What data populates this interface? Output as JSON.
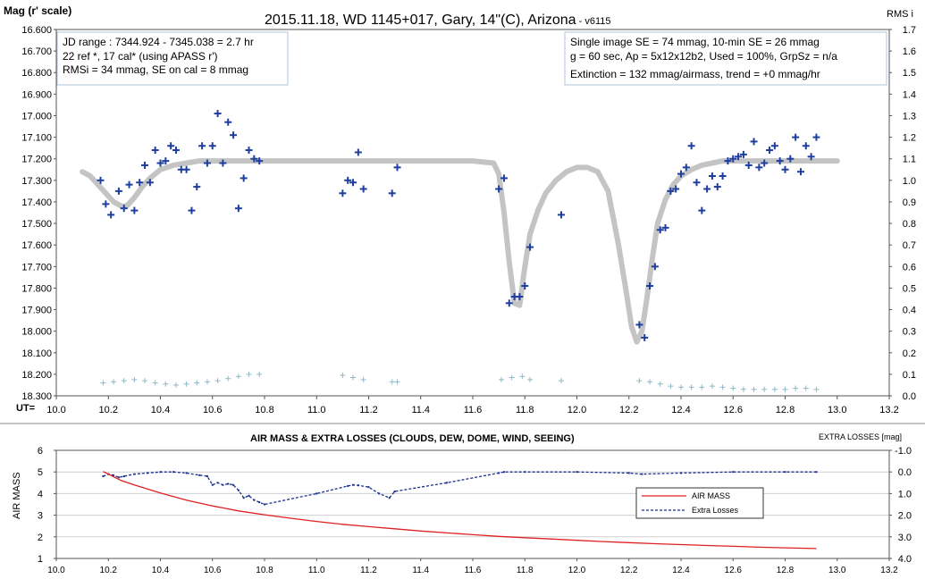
{
  "chart_data": [
    {
      "type": "scatter",
      "title": "2015.11.18, WD 1145+017, Gary, 14\"(C), Arizona",
      "title_suffix": " - v6115",
      "ylabel": "Mag (r' scale)",
      "ylabel_right": "RMS i",
      "xlabel": "UT=",
      "xlim": [
        10.0,
        13.2
      ],
      "ylim": [
        18.3,
        16.6
      ],
      "ylim_right": [
        0.0,
        1.7
      ],
      "x_ticks": [
        "10.0",
        "10.2",
        "10.4",
        "10.6",
        "10.8",
        "11.0",
        "11.2",
        "11.4",
        "11.6",
        "11.8",
        "12.0",
        "12.2",
        "12.4",
        "12.6",
        "12.8",
        "13.0",
        "13.2"
      ],
      "y_ticks": [
        "16.600",
        "16.700",
        "16.800",
        "16.900",
        "17.000",
        "17.100",
        "17.200",
        "17.300",
        "17.400",
        "17.500",
        "17.600",
        "17.700",
        "17.800",
        "17.900",
        "18.000",
        "18.100",
        "18.200",
        "18.300"
      ],
      "y_ticks_right": [
        "1.7",
        "1.6",
        "1.5",
        "1.4",
        "1.3",
        "1.2",
        "1.1",
        "1.0",
        "0.9",
        "0.8",
        "0.7",
        "0.6",
        "0.5",
        "0.4",
        "0.3",
        "0.2",
        "0.1",
        "0.0"
      ],
      "info_left": [
        "JD range  : 7344.924 - 7345.038  = 2.7 hr",
        " 22 ref *, 17 cal* (using APASS r')",
        "RMSi = 34 mmag, SE on cal = 8 mmag"
      ],
      "info_right": [
        "Single image SE = 74 mmag, 10-min SE = 26 mmag",
        "g = 60 sec, Ap = 5x12x12b2, Used = 100%, GrpSz = n/a",
        "Extinction = 132 mmag/airmass, trend = +0 mmag/hr"
      ],
      "colors": {
        "mag": "#1f3f9f",
        "model": "#c4c4c4",
        "rms": "#8fb8c4"
      },
      "series": [
        {
          "role": "mag",
          "x": [
            10.17,
            10.19,
            10.21,
            10.24,
            10.26,
            10.28,
            10.3,
            10.32,
            10.34,
            10.36,
            10.38,
            10.4,
            10.42,
            10.44,
            10.46,
            10.48,
            10.5,
            10.52,
            10.54,
            10.56,
            10.58,
            10.6,
            10.62,
            10.64,
            10.66,
            10.68,
            10.7,
            10.72,
            10.74,
            10.76,
            10.78,
            11.1,
            11.12,
            11.14,
            11.16,
            11.18,
            11.29,
            11.31,
            11.7,
            11.72,
            11.74,
            11.76,
            11.78,
            11.8,
            11.82,
            11.94,
            12.24,
            12.26,
            12.28,
            12.3,
            12.32,
            12.34,
            12.36,
            12.38,
            12.4,
            12.42,
            12.44,
            12.46,
            12.48,
            12.5,
            12.52,
            12.54,
            12.56,
            12.58,
            12.6,
            12.62,
            12.64,
            12.66,
            12.68,
            12.7,
            12.72,
            12.74,
            12.76,
            12.78,
            12.8,
            12.82,
            12.84,
            12.86,
            12.88,
            12.9,
            12.92
          ],
          "y": [
            17.3,
            17.41,
            17.46,
            17.35,
            17.43,
            17.32,
            17.44,
            17.31,
            17.23,
            17.31,
            17.16,
            17.22,
            17.21,
            17.14,
            17.16,
            17.25,
            17.25,
            17.44,
            17.33,
            17.14,
            17.22,
            17.14,
            16.99,
            17.22,
            17.03,
            17.09,
            17.43,
            17.29,
            17.16,
            17.2,
            17.21,
            17.36,
            17.3,
            17.31,
            17.17,
            17.34,
            17.36,
            17.24,
            17.34,
            17.29,
            17.87,
            17.84,
            17.84,
            17.79,
            17.61,
            17.46,
            17.97,
            18.03,
            17.79,
            17.7,
            17.53,
            17.52,
            17.35,
            17.34,
            17.27,
            17.24,
            17.14,
            17.31,
            17.44,
            17.34,
            17.28,
            17.33,
            17.28,
            17.21,
            17.2,
            17.19,
            17.18,
            17.23,
            17.12,
            17.24,
            17.22,
            17.16,
            17.14,
            17.21,
            17.25,
            17.2,
            17.1,
            17.26,
            17.14,
            17.19,
            17.1
          ]
        },
        {
          "role": "model",
          "x": [
            10.1,
            10.13,
            10.16,
            10.19,
            10.22,
            10.25,
            10.27,
            10.3,
            10.33,
            10.36,
            10.4,
            10.45,
            10.5,
            10.55,
            10.6,
            10.7,
            10.8,
            10.9,
            11.0,
            11.1,
            11.2,
            11.3,
            11.4,
            11.5,
            11.6,
            11.68,
            11.7,
            11.72,
            11.74,
            11.76,
            11.78,
            11.8,
            11.82,
            11.85,
            11.88,
            11.92,
            11.96,
            12.0,
            12.04,
            12.08,
            12.12,
            12.16,
            12.19,
            12.21,
            12.23,
            12.25,
            12.27,
            12.29,
            12.31,
            12.34,
            12.37,
            12.4,
            12.44,
            12.48,
            12.52,
            12.56,
            12.6,
            12.65,
            12.7,
            12.8,
            12.9,
            13.0
          ],
          "y": [
            17.26,
            17.28,
            17.32,
            17.36,
            17.4,
            17.42,
            17.42,
            17.38,
            17.33,
            17.29,
            17.25,
            17.23,
            17.22,
            17.21,
            17.21,
            17.21,
            17.21,
            17.21,
            17.21,
            17.21,
            17.21,
            17.21,
            17.21,
            17.21,
            17.21,
            17.22,
            17.27,
            17.45,
            17.68,
            17.87,
            17.88,
            17.7,
            17.55,
            17.44,
            17.36,
            17.3,
            17.26,
            17.24,
            17.24,
            17.26,
            17.35,
            17.6,
            17.82,
            17.98,
            18.05,
            18.0,
            17.84,
            17.66,
            17.5,
            17.39,
            17.32,
            17.28,
            17.25,
            17.23,
            17.22,
            17.21,
            17.21,
            17.21,
            17.21,
            17.21,
            17.21,
            17.21
          ]
        },
        {
          "role": "rms",
          "x": [
            10.18,
            10.22,
            10.26,
            10.3,
            10.34,
            10.38,
            10.42,
            10.46,
            10.5,
            10.54,
            10.58,
            10.62,
            10.66,
            10.7,
            10.74,
            10.78,
            11.1,
            11.14,
            11.18,
            11.29,
            11.31,
            11.71,
            11.75,
            11.79,
            11.82,
            11.94,
            12.24,
            12.28,
            12.32,
            12.36,
            12.4,
            12.44,
            12.48,
            12.52,
            12.56,
            12.6,
            12.64,
            12.68,
            12.72,
            12.76,
            12.8,
            12.84,
            12.88,
            12.92
          ],
          "y": [
            0.06,
            0.065,
            0.07,
            0.075,
            0.07,
            0.06,
            0.055,
            0.05,
            0.055,
            0.06,
            0.065,
            0.07,
            0.08,
            0.09,
            0.1,
            0.1,
            0.095,
            0.085,
            0.075,
            0.065,
            0.065,
            0.075,
            0.085,
            0.09,
            0.075,
            0.07,
            0.07,
            0.065,
            0.055,
            0.045,
            0.04,
            0.04,
            0.04,
            0.045,
            0.04,
            0.035,
            0.03,
            0.03,
            0.03,
            0.03,
            0.03,
            0.035,
            0.035,
            0.03
          ]
        }
      ]
    },
    {
      "type": "line",
      "title": "AIR MASS & EXTRA LOSSES (CLOUDS, DEW, DOME, WIND, SEEING)",
      "ylabel": "AIR MASS",
      "ylabel_right": "EXTRA LOSSES [mag]",
      "xlim": [
        10.0,
        13.2
      ],
      "ylim": [
        1,
        6
      ],
      "ylim_right": [
        4.0,
        -1.0
      ],
      "x_ticks": [
        "10.0",
        "10.2",
        "10.4",
        "10.6",
        "10.8",
        "11.0",
        "11.2",
        "11.4",
        "11.6",
        "11.8",
        "12.0",
        "12.2",
        "12.4",
        "12.6",
        "12.8",
        "13.0",
        "13.2"
      ],
      "y_ticks": [
        "1",
        "2",
        "3",
        "4",
        "5",
        "6"
      ],
      "y_ticks_right": [
        "4.0",
        "3.0",
        "2.0",
        "1.0",
        "0.0",
        "-1.0"
      ],
      "legend": [
        "AIR MASS",
        "Extra Losses"
      ],
      "colors": {
        "airmass": "#e02020",
        "losses": "#1a2f8f"
      },
      "series": [
        {
          "name": "AIR MASS",
          "x": [
            10.18,
            10.25,
            10.3,
            10.4,
            10.5,
            10.6,
            10.7,
            10.8,
            10.9,
            11.0,
            11.1,
            11.2,
            11.3,
            11.4,
            11.5,
            11.6,
            11.7,
            11.8,
            11.9,
            12.0,
            12.1,
            12.2,
            12.3,
            12.4,
            12.5,
            12.6,
            12.7,
            12.8,
            12.92
          ],
          "y": [
            5.02,
            4.6,
            4.4,
            4.03,
            3.7,
            3.43,
            3.2,
            3.02,
            2.86,
            2.71,
            2.58,
            2.47,
            2.37,
            2.27,
            2.18,
            2.1,
            2.02,
            1.96,
            1.9,
            1.84,
            1.78,
            1.73,
            1.68,
            1.64,
            1.6,
            1.56,
            1.52,
            1.49,
            1.46
          ]
        },
        {
          "name": "Extra Losses",
          "x": [
            10.18,
            10.2,
            10.22,
            10.24,
            10.26,
            10.3,
            10.35,
            10.4,
            10.45,
            10.5,
            10.55,
            10.58,
            10.6,
            10.62,
            10.64,
            10.66,
            10.68,
            10.7,
            10.72,
            10.74,
            10.76,
            10.78,
            10.8,
            11.0,
            11.12,
            11.14,
            11.16,
            11.2,
            11.24,
            11.28,
            11.3,
            11.5,
            11.7,
            11.72,
            11.8,
            12.0,
            12.2,
            12.25,
            12.4,
            12.6,
            12.8,
            12.92
          ],
          "y": [
            0.2,
            0.1,
            0.15,
            0.25,
            0.2,
            0.1,
            0.05,
            0.0,
            0.0,
            0.05,
            0.15,
            0.2,
            0.6,
            0.5,
            0.6,
            0.55,
            0.6,
            0.85,
            1.2,
            1.1,
            1.3,
            1.4,
            1.5,
            1.0,
            0.65,
            0.6,
            0.62,
            0.7,
            1.0,
            1.2,
            0.9,
            0.5,
            0.05,
            0.0,
            0.0,
            0.0,
            0.05,
            0.1,
            0.05,
            0.0,
            0.0,
            0.0
          ]
        }
      ]
    }
  ]
}
